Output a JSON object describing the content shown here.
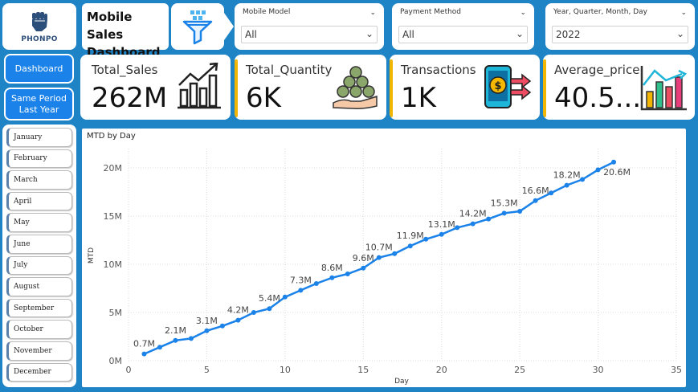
{
  "logo": {
    "text": "PHONPO"
  },
  "header": {
    "title_line1": "Mobile Sales",
    "title_line2": "Dashboard"
  },
  "filters": {
    "mobile_model": {
      "label": "Mobile Model",
      "value": "All"
    },
    "payment_method": {
      "label": "Payment Method",
      "value": "All"
    },
    "date": {
      "label": "Year, Quarter, Month, Day",
      "value": "2022"
    }
  },
  "nav": {
    "dashboard": "Dashboard",
    "same_period_1": "Same Period",
    "same_period_2": "Last Year"
  },
  "kpis": [
    {
      "label": "Total_Sales",
      "value": "262M"
    },
    {
      "label": "Total_Quantity",
      "value": "6K"
    },
    {
      "label": "Transactions",
      "value": "1K"
    },
    {
      "label": "Average_price",
      "value": "40.5..."
    }
  ],
  "months": [
    "January",
    "February",
    "March",
    "April",
    "May",
    "June",
    "July",
    "August",
    "September",
    "October",
    "November",
    "December"
  ],
  "colors": {
    "accent": "#1a82e8",
    "background": "#1e84c6",
    "kpi_bar": "#f2b600"
  },
  "chart_data": {
    "type": "line",
    "title": "MTD by Day",
    "xlabel": "Day",
    "ylabel": "MTD",
    "xlim": [
      0,
      35
    ],
    "ylim": [
      0,
      22
    ],
    "x_ticks": [
      0,
      5,
      10,
      15,
      20,
      25,
      30,
      35
    ],
    "y_ticks": [
      {
        "v": 0,
        "label": "0M"
      },
      {
        "v": 5,
        "label": "5M"
      },
      {
        "v": 10,
        "label": "10M"
      },
      {
        "v": 15,
        "label": "15M"
      },
      {
        "v": 20,
        "label": "20M"
      }
    ],
    "x": [
      1,
      2,
      3,
      4,
      5,
      6,
      7,
      8,
      9,
      10,
      11,
      12,
      13,
      14,
      15,
      16,
      17,
      18,
      19,
      20,
      21,
      22,
      23,
      24,
      25,
      26,
      27,
      28,
      29,
      30,
      31
    ],
    "values": [
      0.7,
      1.4,
      2.1,
      2.3,
      3.1,
      3.6,
      4.2,
      5.0,
      5.4,
      6.6,
      7.3,
      8.0,
      8.6,
      9.0,
      9.6,
      10.7,
      11.1,
      11.9,
      12.6,
      13.1,
      13.8,
      14.2,
      14.7,
      15.3,
      15.5,
      16.6,
      17.4,
      18.2,
      18.8,
      19.8,
      20.6
    ],
    "data_labels": [
      {
        "x": 1,
        "label": "0.7M"
      },
      {
        "x": 3,
        "label": "2.1M"
      },
      {
        "x": 5,
        "label": "3.1M"
      },
      {
        "x": 7,
        "label": "4.2M"
      },
      {
        "x": 9,
        "label": "5.4M"
      },
      {
        "x": 11,
        "label": "7.3M"
      },
      {
        "x": 13,
        "label": "8.6M"
      },
      {
        "x": 15,
        "label": "9.6M"
      },
      {
        "x": 16,
        "label": "10.7M"
      },
      {
        "x": 18,
        "label": "11.9M"
      },
      {
        "x": 20,
        "label": "13.1M"
      },
      {
        "x": 22,
        "label": "14.2M"
      },
      {
        "x": 24,
        "label": "15.3M"
      },
      {
        "x": 26,
        "label": "16.6M"
      },
      {
        "x": 28,
        "label": "18.2M"
      },
      {
        "x": 31,
        "label": "20.6M"
      }
    ],
    "grid": true
  }
}
